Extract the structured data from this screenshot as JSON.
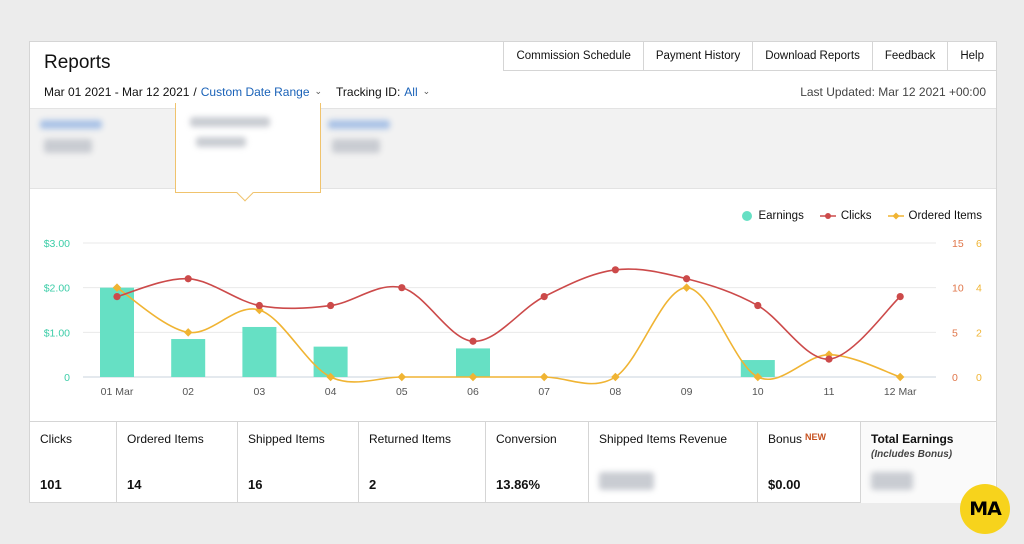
{
  "header": {
    "title": "Reports",
    "nav": [
      "Commission Schedule",
      "Payment History",
      "Download Reports",
      "Feedback",
      "Help"
    ],
    "date_range": "Mar 01 2021 - Mar 12 2021",
    "separator": "/",
    "custom_range_label": "Custom Date Range",
    "tracking_label": "Tracking ID:",
    "tracking_value": "All",
    "last_updated": "Last Updated: Mar 12 2021 +00:00"
  },
  "legend": {
    "earnings": "Earnings",
    "clicks": "Clicks",
    "ordered": "Ordered Items"
  },
  "colors": {
    "earnings": "#66e0c4",
    "clicks": "#cc4a4a",
    "ordered": "#f0b433",
    "left_axis": "#3ccda8",
    "right_axis": "#e0764a"
  },
  "chart_data": {
    "type": "bar",
    "categories": [
      "01 Mar",
      "02",
      "03",
      "04",
      "05",
      "06",
      "07",
      "08",
      "09",
      "10",
      "11",
      "12 Mar"
    ],
    "series": [
      {
        "name": "Earnings",
        "type": "bar",
        "axis": "left",
        "values": [
          2.0,
          0.85,
          1.12,
          0.68,
          0,
          0.64,
          0,
          0,
          0,
          0.38,
          0,
          0
        ]
      },
      {
        "name": "Clicks",
        "type": "line",
        "axis": "right-outer",
        "values": [
          9,
          11,
          8,
          8,
          10,
          4,
          9,
          12,
          11,
          8,
          2,
          9
        ]
      },
      {
        "name": "Ordered Items",
        "type": "line",
        "axis": "right-inner",
        "values": [
          4,
          2,
          3,
          0,
          0,
          0,
          0,
          0,
          4,
          0,
          1,
          0
        ]
      }
    ],
    "y_left_ticks": [
      "0",
      "$1.00",
      "$2.00",
      "$3.00"
    ],
    "y_left_range": [
      0,
      3
    ],
    "y_right_outer_ticks": [
      "0",
      "5",
      "10",
      "15"
    ],
    "y_right_outer_range": [
      0,
      15
    ],
    "y_right_inner_ticks": [
      "0",
      "2",
      "4",
      "6"
    ],
    "y_right_inner_range": [
      0,
      6
    ],
    "grid": true,
    "legend_position": "top-right"
  },
  "metrics": [
    {
      "label": "Clicks",
      "value": "101"
    },
    {
      "label": "Ordered Items",
      "value": "14"
    },
    {
      "label": "Shipped Items",
      "value": "16"
    },
    {
      "label": "Returned Items",
      "value": "2"
    },
    {
      "label": "Conversion",
      "value": "13.86%"
    },
    {
      "label": "Shipped Items Revenue",
      "value": ""
    },
    {
      "label": "Bonus",
      "badge": "NEW",
      "value": "$0.00"
    },
    {
      "label": "Total Earnings",
      "sub": "(Includes Bonus)",
      "value": ""
    }
  ],
  "logo_text": "MA"
}
